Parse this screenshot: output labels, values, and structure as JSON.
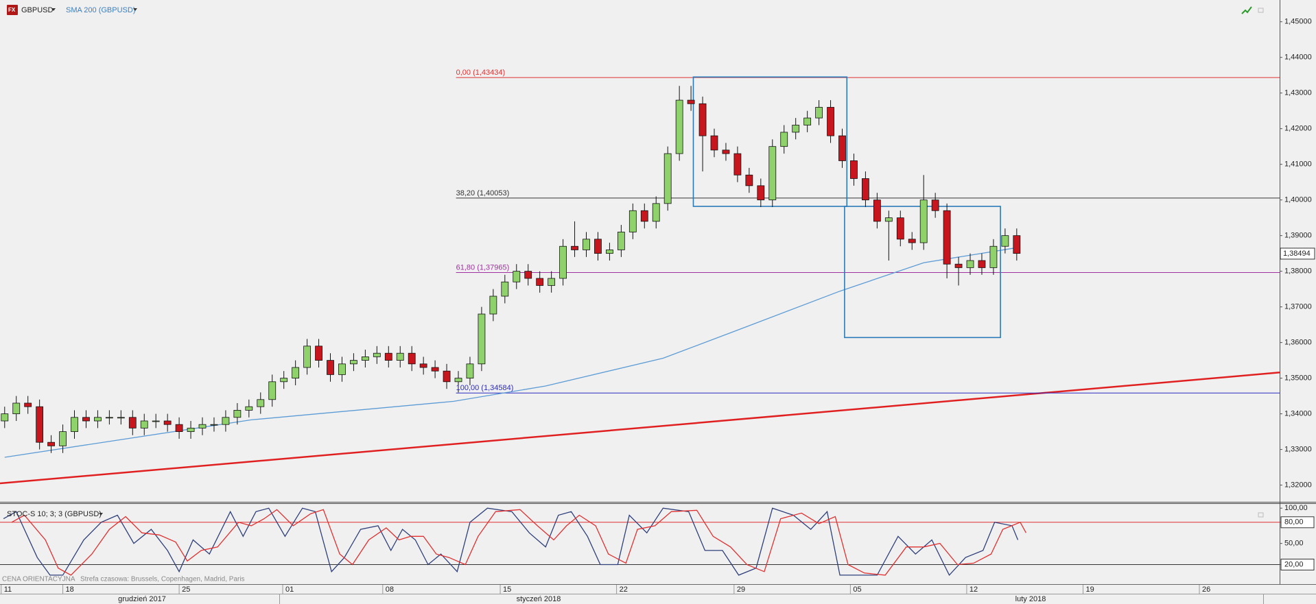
{
  "header": {
    "symbol": "GBPUSD"
  },
  "chart_data": [
    {
      "type": "candlestick",
      "x": [
        -5,
        -4,
        -3,
        -2,
        -1,
        0,
        1,
        2,
        3,
        4,
        5,
        6,
        7,
        8,
        9,
        10,
        11,
        12,
        13,
        14,
        15,
        16,
        17,
        18,
        19,
        20,
        21,
        22,
        23,
        24,
        25,
        26,
        27,
        28,
        29,
        30,
        31,
        32,
        33,
        34,
        35,
        36,
        37,
        38,
        39,
        40,
        41,
        42,
        43,
        44,
        45,
        46,
        47,
        48,
        49,
        50,
        51,
        52,
        53,
        54,
        55,
        56,
        57,
        58,
        59,
        60,
        61,
        62,
        63,
        64,
        65,
        66,
        67,
        68,
        69,
        70,
        71,
        72,
        73,
        74,
        75,
        76,
        77,
        78,
        79,
        80,
        81,
        82
      ],
      "open": [
        1.338,
        1.34,
        1.343,
        1.342,
        1.332,
        1.331,
        1.335,
        1.339,
        1.338,
        1.339,
        1.339,
        1.339,
        1.336,
        1.338,
        1.338,
        1.337,
        1.335,
        1.336,
        1.337,
        1.337,
        1.339,
        1.341,
        1.342,
        1.344,
        1.349,
        1.35,
        1.353,
        1.359,
        1.355,
        1.351,
        1.354,
        1.355,
        1.356,
        1.357,
        1.355,
        1.357,
        1.354,
        1.353,
        1.352,
        1.349,
        1.35,
        1.354,
        1.368,
        1.373,
        1.377,
        1.38,
        1.378,
        1.376,
        1.378,
        1.387,
        1.386,
        1.389,
        1.385,
        1.386,
        1.391,
        1.397,
        1.394,
        1.399,
        1.413,
        1.428,
        1.427,
        1.418,
        1.414,
        1.413,
        1.407,
        1.404,
        1.4,
        1.415,
        1.419,
        1.421,
        1.423,
        1.426,
        1.418,
        1.411,
        1.406,
        1.4,
        1.394,
        1.395,
        1.389,
        1.388,
        1.4,
        1.397,
        1.382,
        1.381,
        1.383,
        1.381,
        1.387,
        1.39
      ],
      "high": [
        1.342,
        1.345,
        1.345,
        1.344,
        1.334,
        1.337,
        1.341,
        1.341,
        1.341,
        1.341,
        1.341,
        1.341,
        1.34,
        1.34,
        1.34,
        1.339,
        1.338,
        1.339,
        1.339,
        1.341,
        1.343,
        1.344,
        1.346,
        1.351,
        1.352,
        1.355,
        1.361,
        1.361,
        1.357,
        1.356,
        1.357,
        1.358,
        1.359,
        1.359,
        1.359,
        1.359,
        1.356,
        1.355,
        1.354,
        1.352,
        1.356,
        1.37,
        1.375,
        1.379,
        1.382,
        1.382,
        1.38,
        1.38,
        1.389,
        1.394,
        1.391,
        1.391,
        1.388,
        1.393,
        1.399,
        1.399,
        1.401,
        1.415,
        1.432,
        1.432,
        1.429,
        1.42,
        1.416,
        1.415,
        1.409,
        1.406,
        1.417,
        1.421,
        1.423,
        1.425,
        1.428,
        1.428,
        1.42,
        1.413,
        1.408,
        1.402,
        1.397,
        1.397,
        1.391,
        1.407,
        1.402,
        1.399,
        1.384,
        1.385,
        1.385,
        1.389,
        1.392,
        1.392
      ],
      "low": [
        1.336,
        1.338,
        1.34,
        1.33,
        1.329,
        1.329,
        1.333,
        1.336,
        1.336,
        1.337,
        1.337,
        1.334,
        1.334,
        1.336,
        1.335,
        1.333,
        1.333,
        1.334,
        1.335,
        1.335,
        1.337,
        1.339,
        1.34,
        1.342,
        1.347,
        1.348,
        1.351,
        1.353,
        1.349,
        1.349,
        1.352,
        1.353,
        1.354,
        1.353,
        1.353,
        1.352,
        1.351,
        1.35,
        1.347,
        1.346,
        1.348,
        1.352,
        1.366,
        1.371,
        1.375,
        1.376,
        1.374,
        1.374,
        1.376,
        1.384,
        1.384,
        1.383,
        1.383,
        1.384,
        1.389,
        1.392,
        1.392,
        1.397,
        1.411,
        1.425,
        1.408,
        1.412,
        1.411,
        1.405,
        1.402,
        1.398,
        1.398,
        1.413,
        1.417,
        1.419,
        1.421,
        1.416,
        1.409,
        1.404,
        1.398,
        1.392,
        1.383,
        1.387,
        1.386,
        1.386,
        1.395,
        1.378,
        1.376,
        1.379,
        1.379,
        1.379,
        1.385,
        1.383
      ],
      "close": [
        1.34,
        1.343,
        1.342,
        1.332,
        1.331,
        1.335,
        1.339,
        1.338,
        1.339,
        1.339,
        1.339,
        1.336,
        1.338,
        1.338,
        1.337,
        1.335,
        1.336,
        1.337,
        1.337,
        1.339,
        1.341,
        1.342,
        1.344,
        1.349,
        1.35,
        1.353,
        1.359,
        1.355,
        1.351,
        1.354,
        1.355,
        1.356,
        1.357,
        1.355,
        1.357,
        1.354,
        1.353,
        1.352,
        1.349,
        1.35,
        1.354,
        1.368,
        1.373,
        1.377,
        1.38,
        1.378,
        1.376,
        1.378,
        1.387,
        1.386,
        1.389,
        1.385,
        1.386,
        1.391,
        1.397,
        1.394,
        1.399,
        1.413,
        1.428,
        1.427,
        1.418,
        1.414,
        1.413,
        1.407,
        1.404,
        1.4,
        1.415,
        1.419,
        1.421,
        1.423,
        1.426,
        1.418,
        1.411,
        1.406,
        1.4,
        1.394,
        1.395,
        1.389,
        1.388,
        1.4,
        1.397,
        1.382,
        1.381,
        1.383,
        1.381,
        1.387,
        1.39,
        1.385
      ],
      "up_color": "#8fd16a",
      "down_color": "#c8161e",
      "series": [
        {
          "name": "SMA 200 (GBPUSD)",
          "color": "#5b9bd5",
          "x": [
            -5,
            16.2,
            33.6,
            41.5,
            51.6,
            58.1,
            66.8,
            74,
            82
          ],
          "values": [
            1.3278,
            1.3383,
            1.3435,
            1.3478,
            1.3556,
            1.3636,
            1.3744,
            1.3824,
            1.3866
          ]
        }
      ],
      "trend_lines": [
        {
          "color": "#e02020",
          "x": [
            -5.4,
            104.6
          ],
          "values": [
            1.3205,
            1.3516
          ]
        }
      ],
      "levels": [
        {
          "value": 1.43434,
          "label": "0,00 (1,43434)",
          "color": "#e03030",
          "x": 33.8
        },
        {
          "value": 1.40053,
          "label": "38,20 (1,40053)",
          "color": "#333333",
          "x": 33.8
        },
        {
          "value": 1.37965,
          "label": "61,80 (1,37965)",
          "color": "#a030a0",
          "x": 33.8
        },
        {
          "value": 1.34584,
          "label": "100,00 (1,34584)",
          "color": "#2a2ac0",
          "x": 33.8
        }
      ],
      "boxes": [
        {
          "color": "#2a7ab8",
          "x": [
            54.2,
            67.4
          ],
          "values": [
            1.4345,
            1.3982
          ]
        },
        {
          "color": "#2a7ab8",
          "x": [
            67.2,
            80.6
          ],
          "values": [
            1.3982,
            1.3614
          ]
        }
      ],
      "last_price": {
        "value": 1.38494,
        "label": "1,38494"
      },
      "xlim": [
        -5.4,
        104.6
      ],
      "xticks": [
        {
          "value": -5.3,
          "label": "11"
        },
        {
          "value": 0,
          "label": "18"
        },
        {
          "value": 10,
          "label": "25"
        },
        {
          "value": 18.9,
          "label": "01"
        },
        {
          "value": 27.5,
          "label": "08"
        },
        {
          "value": 37.6,
          "label": "15"
        },
        {
          "value": 47.6,
          "label": "22"
        },
        {
          "value": 57.7,
          "label": "29"
        },
        {
          "value": 67.7,
          "label": "05"
        },
        {
          "value": 77.7,
          "label": "12"
        },
        {
          "value": 87.7,
          "label": "19"
        },
        {
          "value": 97.7,
          "label": "26"
        }
      ],
      "ylim": [
        1.3153,
        1.4561
      ],
      "yticks": [
        {
          "value": 1.32,
          "label": "1,32000"
        },
        {
          "value": 1.33,
          "label": "1,33000"
        },
        {
          "value": 1.34,
          "label": "1,34000"
        },
        {
          "value": 1.35,
          "label": "1,35000"
        },
        {
          "value": 1.36,
          "label": "1,36000"
        },
        {
          "value": 1.37,
          "label": "1,37000"
        },
        {
          "value": 1.38,
          "label": "1,38000"
        },
        {
          "value": 1.39,
          "label": "1,39000"
        },
        {
          "value": 1.4,
          "label": "1,40000"
        },
        {
          "value": 1.41,
          "label": "1,41000"
        },
        {
          "value": 1.42,
          "label": "1,42000"
        },
        {
          "value": 1.43,
          "label": "1,43000"
        },
        {
          "value": 1.44,
          "label": "1,44000"
        },
        {
          "value": 1.45,
          "label": "1,45000"
        }
      ]
    },
    {
      "type": "line",
      "title": "STOC-S 10; 3; 3 (GBPUSD)",
      "series": [
        {
          "color": "#2e3f7a",
          "x": [
            -5.1,
            -4,
            -2.2,
            -1.1,
            0,
            1.8,
            3.3,
            4.7,
            6.1,
            7.6,
            9,
            10,
            11.2,
            12.6,
            14.4,
            15.5,
            16.6,
            17.7,
            19.1,
            20.6,
            21.7,
            23.1,
            24.2,
            25.6,
            27.1,
            28.2,
            29.2,
            30.3,
            31.4,
            32.5,
            33.9,
            35,
            36.5,
            38.6,
            40.1,
            41.5,
            42.6,
            43.7,
            45.1,
            46.2,
            47.7,
            48.7,
            50.2,
            51.6,
            53.8,
            55.2,
            56.7,
            58.1,
            59.6,
            61,
            62.8,
            64.3,
            65.7,
            66.8,
            68.2,
            70,
            71.8,
            73.3,
            74.7,
            76.2,
            77.6,
            79.1,
            80.1,
            81.6,
            82.1
          ],
          "values": [
            85,
            95,
            30,
            5,
            5,
            55,
            80,
            90,
            50,
            70,
            40,
            10,
            55,
            35,
            95,
            60,
            95,
            100,
            60,
            100,
            95,
            10,
            30,
            70,
            75,
            40,
            70,
            55,
            20,
            35,
            10,
            80,
            100,
            95,
            65,
            45,
            90,
            95,
            60,
            20,
            20,
            90,
            65,
            100,
            95,
            40,
            40,
            5,
            15,
            100,
            90,
            70,
            95,
            5,
            5,
            5,
            60,
            35,
            55,
            5,
            30,
            40,
            80,
            75,
            55
          ]
        },
        {
          "color": "#e03030",
          "x": [
            -4.4,
            -3.3,
            -1.5,
            -0.4,
            0.7,
            2.5,
            4,
            5.4,
            6.8,
            8.3,
            9.7,
            10.7,
            11.9,
            13.3,
            15.1,
            16.2,
            17.3,
            18.4,
            19.8,
            21.3,
            22.4,
            23.8,
            24.9,
            26.3,
            27.8,
            28.9,
            29.9,
            31,
            32.1,
            33.2,
            34.6,
            35.7,
            37.2,
            39.3,
            40.8,
            42.2,
            43.3,
            44.4,
            45.8,
            46.9,
            48.4,
            49.4,
            50.9,
            52.3,
            54.5,
            55.9,
            57.4,
            58.8,
            60.3,
            61.7,
            63.5,
            65,
            66.4,
            67.5,
            68.9,
            70.7,
            72.5,
            74,
            75.4,
            76.9,
            78.3,
            79.8,
            80.8,
            82.3,
            82.8
          ],
          "values": [
            80,
            90,
            55,
            15,
            5,
            35,
            70,
            88,
            65,
            62,
            52,
            25,
            40,
            45,
            80,
            75,
            85,
            98,
            75,
            92,
            98,
            35,
            20,
            55,
            72,
            55,
            60,
            60,
            35,
            30,
            20,
            60,
            95,
            98,
            75,
            55,
            75,
            90,
            75,
            35,
            22,
            70,
            75,
            95,
            97,
            60,
            45,
            20,
            10,
            85,
            93,
            78,
            88,
            20,
            8,
            5,
            45,
            45,
            50,
            20,
            22,
            35,
            70,
            80,
            65
          ]
        }
      ],
      "levels": [
        {
          "value": 80,
          "color": "#e03030"
        },
        {
          "value": 20,
          "color": "#333333"
        }
      ],
      "xlim": [
        -5.4,
        104.6
      ],
      "ylim": [
        2,
        107
      ],
      "yticks": [
        {
          "value": 20,
          "label": "20,00"
        },
        {
          "value": 50,
          "label": "50,00"
        },
        {
          "value": 80,
          "label": "80,00"
        },
        {
          "value": 100,
          "label": "100,00"
        }
      ]
    }
  ],
  "footer": {
    "note": "CENA ORIENTACYJNA",
    "timezone": "Strefa czasowa: Brussels, Copenhagen, Madrid, Paris",
    "months": [
      "grudzień 2017",
      "styczeń 2018",
      "luty 2018"
    ]
  }
}
